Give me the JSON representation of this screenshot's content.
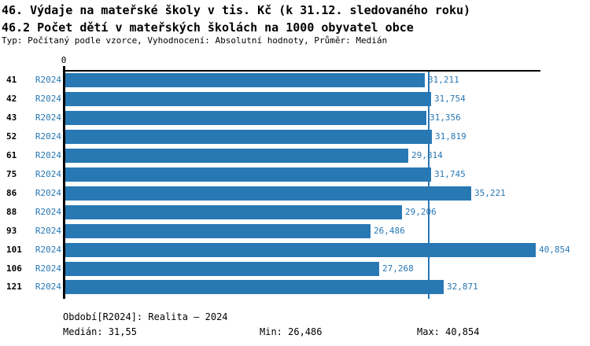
{
  "header": {
    "title_line1": "46. Výdaje na mateřské školy v tis. Kč (k 31.12. sledovaného roku)",
    "title_line2": "46.2 Počet dětí v mateřských školách na 1000 obyvatel obce",
    "subtitle": "Typ: Počítaný podle vzorce, Vyhodnocení: Absolutní hodnoty, Průměr: Medián"
  },
  "colors": {
    "bar": "#2878b4",
    "blue_text": "#2878b4",
    "axis": "#000000",
    "median_line": "#2878b4"
  },
  "chart_data": {
    "type": "bar",
    "orientation": "horizontal",
    "title": "46. Výdaje na mateřské školy v tis. Kč (k 31.12. sledovaného roku)",
    "subtitle": "46.2 Počet dětí v mateřských školách na 1000 obyvatel obce",
    "categories": [
      "41",
      "42",
      "43",
      "52",
      "61",
      "75",
      "86",
      "88",
      "93",
      "101",
      "106",
      "121"
    ],
    "series": [
      {
        "name": "R2024",
        "values": [
          31.211,
          31.754,
          31.356,
          31.819,
          29.814,
          31.745,
          35.221,
          29.206,
          26.486,
          40.854,
          27.268,
          32.871
        ],
        "value_labels": [
          "31,211",
          "31,754",
          "31,356",
          "31,819",
          "29,814",
          "31,745",
          "35,221",
          "29,206",
          "26,486",
          "40,854",
          "27,268",
          "32,871"
        ]
      }
    ],
    "x_axis": {
      "zero_label": "0",
      "min": 0,
      "max": 40.854
    },
    "median_value": 31.55,
    "grid": false,
    "legend_position": "none",
    "value_label_position": "outside-end"
  },
  "footer": {
    "period": "Období[R2024]: Realita – 2024",
    "median": "Medián: 31,55",
    "min": "Min: 26,486",
    "max": "Max: 40,854"
  }
}
